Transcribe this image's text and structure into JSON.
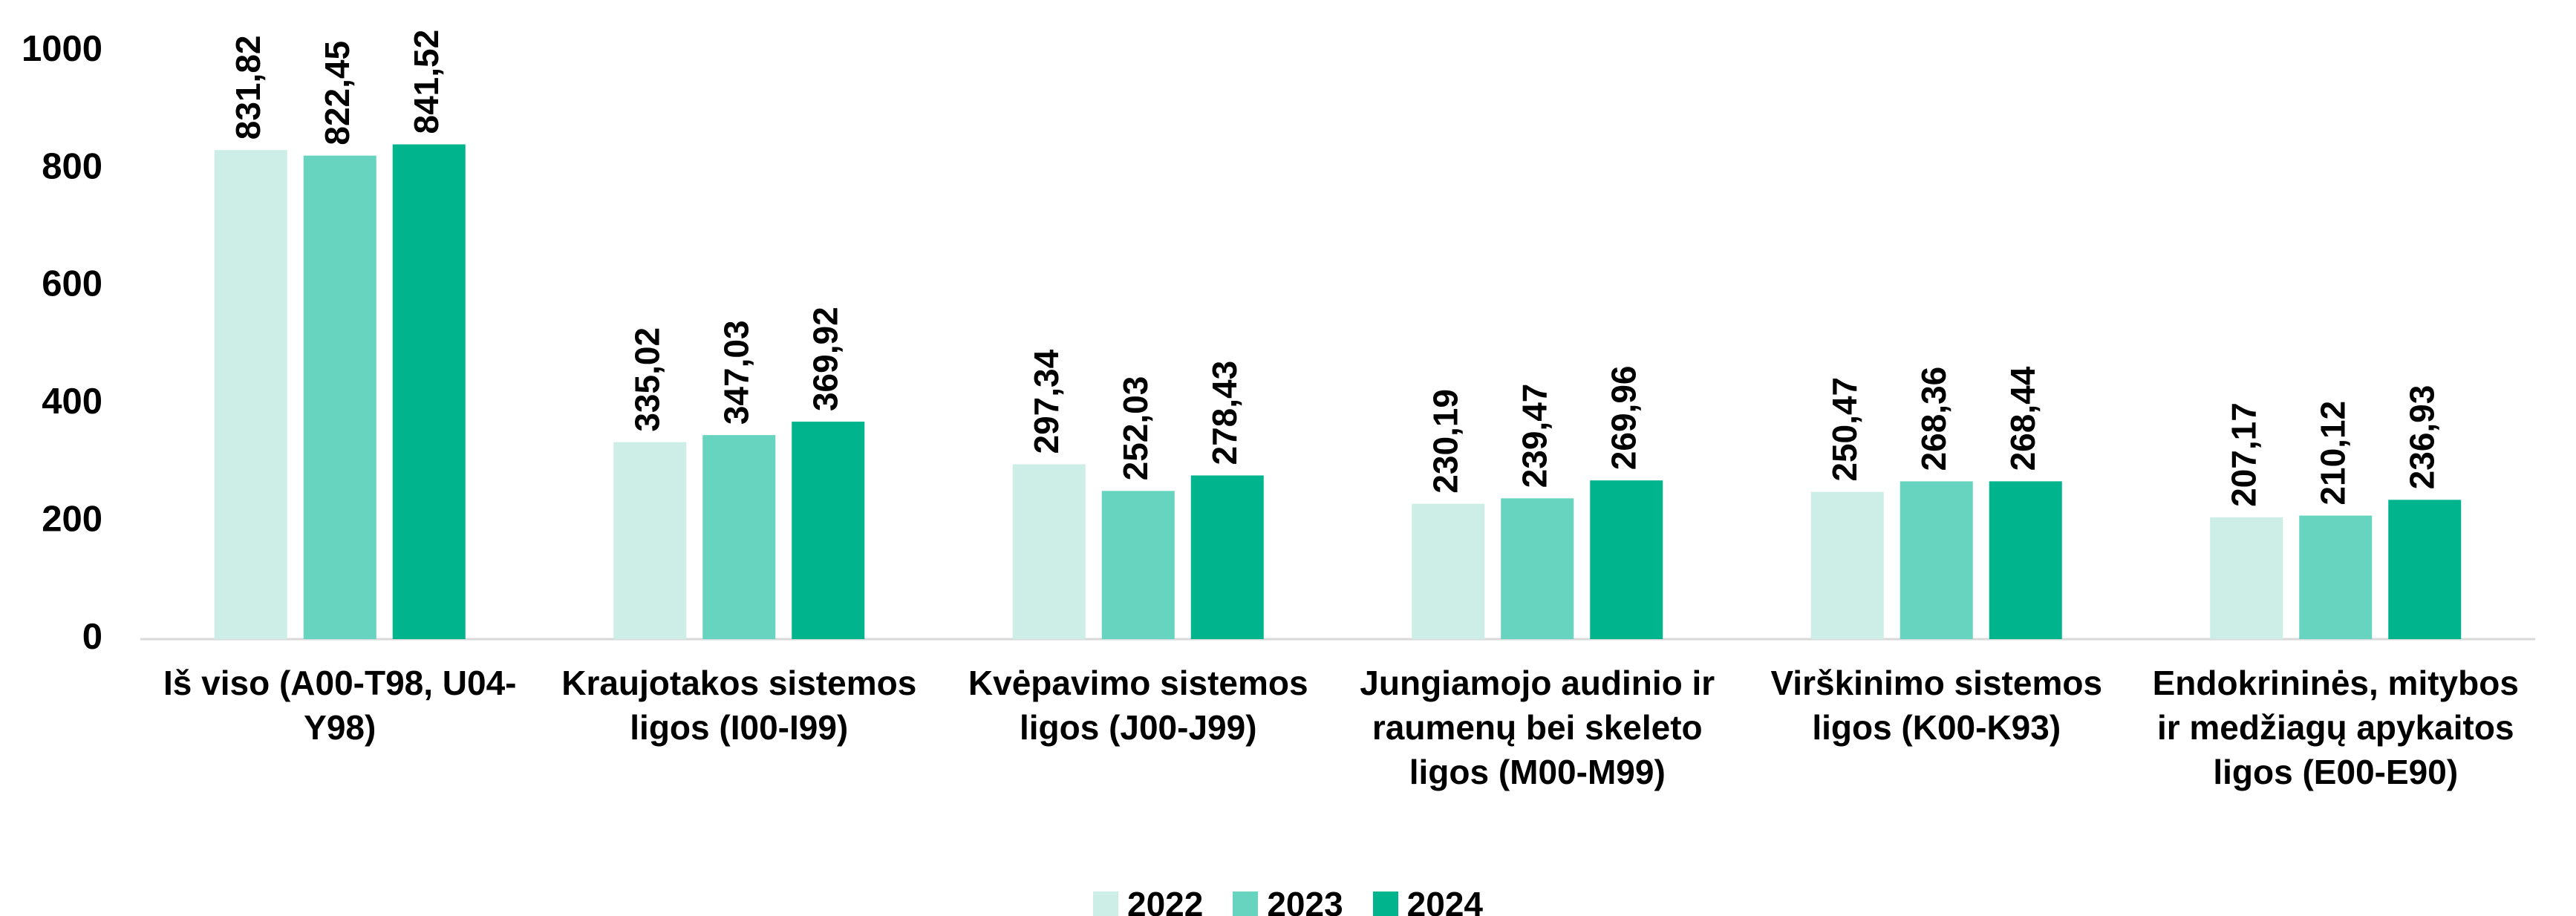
{
  "chart_data": {
    "type": "bar",
    "categories": [
      "Iš viso (A00-T98, U04-Y98)",
      "Kraujotakos sistemos ligos (I00-I99)",
      "Kvėpavimo sistemos ligos (J00-J99)",
      "Jungiamojo audinio ir raumenų bei skeleto ligos (M00-M99)",
      "Virškinimo sistemos ligos (K00-K93)",
      "Endokrininės, mitybos ir medžiagų apykaitos ligos (E00-E90)"
    ],
    "series": [
      {
        "name": "2022",
        "color": "#cdeee6",
        "values": [
          831.82,
          335.02,
          297.34,
          230.19,
          250.47,
          207.17
        ],
        "value_labels": [
          "831,82",
          "335,02",
          "297,34",
          "230,19",
          "250,47",
          "207,17"
        ]
      },
      {
        "name": "2023",
        "color": "#66d4bf",
        "values": [
          822.45,
          347.03,
          252.03,
          239.47,
          268.36,
          210.12
        ],
        "value_labels": [
          "822,45",
          "347,03",
          "252,03",
          "239,47",
          "268,36",
          "210,12"
        ]
      },
      {
        "name": "2024",
        "color": "#00b48e",
        "values": [
          841.52,
          369.92,
          278.43,
          269.96,
          268.44,
          236.93
        ],
        "value_labels": [
          "841,52",
          "369,92",
          "278,43",
          "269,96",
          "268,44",
          "236,93"
        ]
      }
    ],
    "ylim": [
      0,
      1000
    ],
    "yticks": [
      0,
      200,
      400,
      600,
      800,
      1000
    ],
    "grid": false,
    "legend": "bottom"
  }
}
